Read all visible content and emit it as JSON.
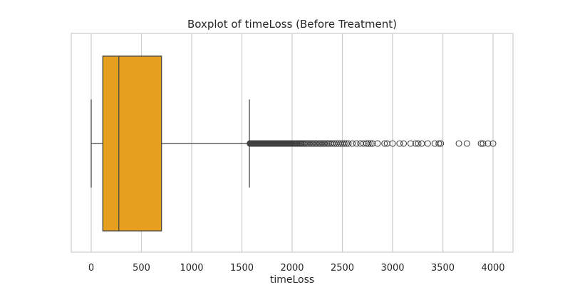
{
  "chart_data": {
    "type": "boxplot",
    "title": "Boxplot of timeLoss (Before Treatment)",
    "xlabel": "timeLoss",
    "ylabel": "",
    "xlim": [
      -100,
      4100
    ],
    "xticks": [
      0,
      500,
      1000,
      1500,
      2000,
      2500,
      3000,
      3500,
      4000
    ],
    "xtick_labels": [
      "0",
      "500",
      "1000",
      "1500",
      "2000",
      "2500",
      "3000",
      "3500",
      "4000"
    ],
    "grid": "vertical",
    "box": {
      "whisker_low": 0,
      "q1": 115,
      "median": 275,
      "q3": 700,
      "whisker_high": 1575
    },
    "outliers": [
      1580,
      1585,
      1590,
      1595,
      1600,
      1605,
      1610,
      1615,
      1620,
      1625,
      1630,
      1635,
      1640,
      1645,
      1650,
      1655,
      1660,
      1665,
      1670,
      1675,
      1680,
      1685,
      1690,
      1695,
      1700,
      1705,
      1710,
      1715,
      1720,
      1725,
      1730,
      1735,
      1740,
      1745,
      1750,
      1755,
      1760,
      1765,
      1770,
      1775,
      1780,
      1785,
      1790,
      1795,
      1800,
      1805,
      1810,
      1815,
      1820,
      1825,
      1830,
      1835,
      1840,
      1845,
      1850,
      1855,
      1860,
      1865,
      1870,
      1875,
      1880,
      1885,
      1890,
      1895,
      1900,
      1905,
      1910,
      1915,
      1920,
      1925,
      1930,
      1935,
      1940,
      1945,
      1950,
      1955,
      1960,
      1965,
      1970,
      1975,
      1980,
      1985,
      1990,
      1995,
      2000,
      2010,
      2020,
      2030,
      2040,
      2050,
      2060,
      2070,
      2080,
      2090,
      2100,
      2110,
      2125,
      2140,
      2155,
      2170,
      2185,
      2200,
      2215,
      2230,
      2245,
      2260,
      2275,
      2290,
      2305,
      2320,
      2335,
      2350,
      2365,
      2380,
      2400,
      2420,
      2440,
      2460,
      2480,
      2500,
      2520,
      2540,
      2560,
      2600,
      2640,
      2680,
      2710,
      2740,
      2760,
      2780,
      2800,
      2850,
      2920,
      2945,
      3000,
      3070,
      3110,
      3180,
      3230,
      3255,
      3290,
      3350,
      3420,
      3460,
      3480,
      3660,
      3740,
      3880,
      3900,
      3950,
      4000
    ],
    "box_color": "#E69F1F",
    "line_color": "#404040",
    "grid_color": "#cccccc",
    "frame_color": "#cccccc"
  }
}
